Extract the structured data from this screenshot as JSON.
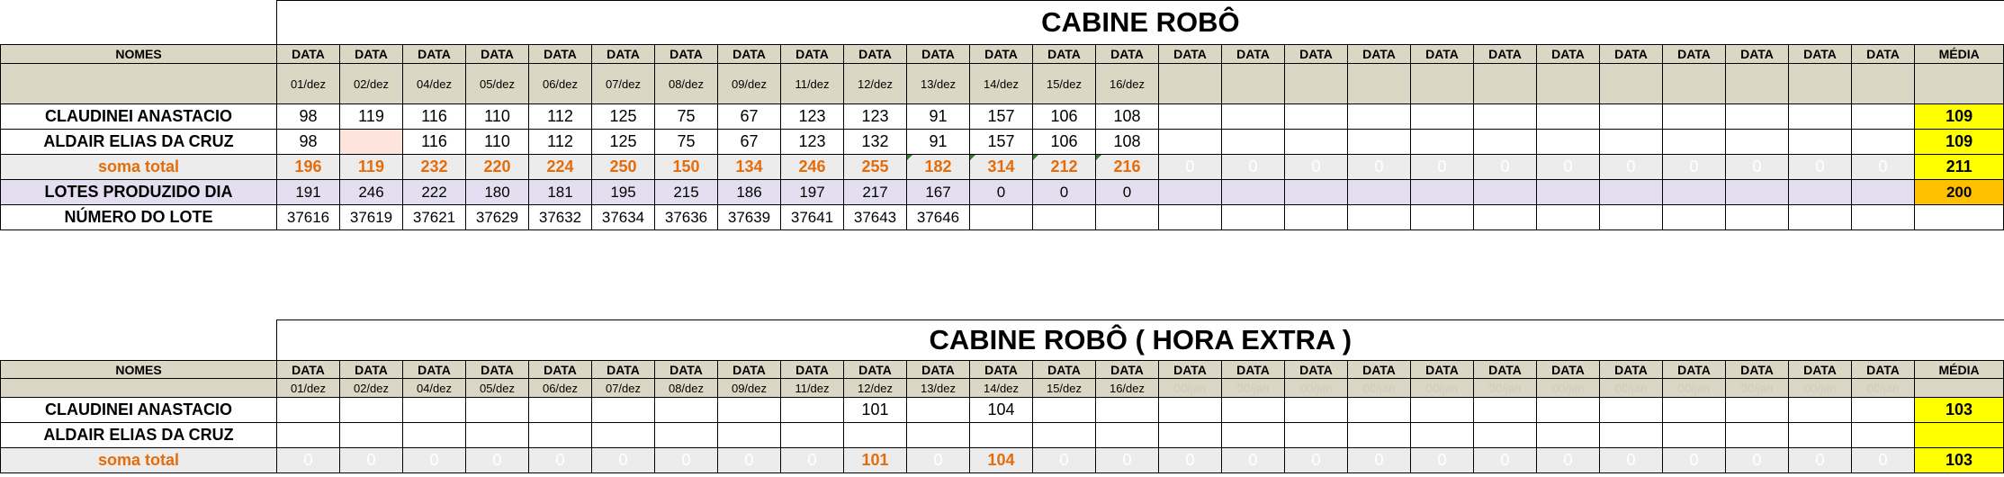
{
  "table1": {
    "title": "CABINE ROBÔ",
    "header": {
      "nomes": "NOMES",
      "data": "DATA",
      "media": "MÉDIA"
    },
    "dates": [
      "01/dez",
      "02/dez",
      "04/dez",
      "05/dez",
      "06/dez",
      "07/dez",
      "08/dez",
      "09/dez",
      "11/dez",
      "12/dez",
      "13/dez",
      "14/dez",
      "15/dez",
      "16/dez",
      "",
      "",
      "",
      "",
      "",
      "",
      "",
      "",
      "",
      "",
      "",
      ""
    ],
    "rows": [
      {
        "name": "CLAUDINEI ANASTACIO",
        "values": [
          "98",
          "119",
          "116",
          "110",
          "112",
          "125",
          "75",
          "67",
          "123",
          "123",
          "91",
          "157",
          "106",
          "108",
          "",
          "",
          "",
          "",
          "",
          "",
          "",
          "",
          "",
          "",
          "",
          ""
        ],
        "media": "109"
      },
      {
        "name": "ALDAIR ELIAS DA CRUZ",
        "values": [
          "98",
          "",
          "116",
          "110",
          "112",
          "125",
          "75",
          "67",
          "123",
          "132",
          "91",
          "157",
          "106",
          "108",
          "",
          "",
          "",
          "",
          "",
          "",
          "",
          "",
          "",
          "",
          "",
          ""
        ],
        "media": "109"
      }
    ],
    "soma": {
      "name": "soma total",
      "values": [
        "196",
        "119",
        "232",
        "220",
        "224",
        "250",
        "150",
        "134",
        "246",
        "255",
        "182",
        "314",
        "212",
        "216",
        "0",
        "0",
        "0",
        "0",
        "0",
        "0",
        "0",
        "0",
        "0",
        "0",
        "0",
        "0"
      ],
      "media": "211"
    },
    "lotes": {
      "name": "LOTES PRODUZIDO DIA",
      "values": [
        "191",
        "246",
        "222",
        "180",
        "181",
        "195",
        "215",
        "186",
        "197",
        "217",
        "167",
        "0",
        "0",
        "0",
        "",
        "",
        "",
        "",
        "",
        "",
        "",
        "",
        "",
        "",
        "",
        ""
      ],
      "media": "200"
    },
    "numero_lote": {
      "name": "NÚMERO DO LOTE",
      "values": [
        "37616",
        "37619",
        "37621",
        "37629",
        "37632",
        "37634",
        "37636",
        "37639",
        "37641",
        "37643",
        "37646",
        "",
        "",
        "",
        "",
        "",
        "",
        "",
        "",
        "",
        "",
        "",
        "",
        "",
        "",
        ""
      ],
      "media": ""
    }
  },
  "table2": {
    "title": "CABINE ROBÔ ( HORA EXTRA )",
    "header": {
      "nomes": "NOMES",
      "data": "DATA",
      "media": "MÉDIA"
    },
    "dates": [
      "01/dez",
      "02/dez",
      "04/dez",
      "05/dez",
      "06/dez",
      "07/dez",
      "08/dez",
      "09/dez",
      "11/dez",
      "12/dez",
      "13/dez",
      "14/dez",
      "15/dez",
      "16/dez",
      "00/jan",
      "00/jan",
      "00/jan",
      "00/jan",
      "00/jan",
      "00/jan",
      "00/jan",
      "00/jan",
      "00/jan",
      "00/jan",
      "00/jan",
      "00/jan"
    ],
    "rows": [
      {
        "name": "CLAUDINEI ANASTACIO",
        "values": [
          "",
          "",
          "",
          "",
          "",
          "",
          "",
          "",
          "",
          "101",
          "",
          "104",
          "",
          "",
          "",
          "",
          "",
          "",
          "",
          "",
          "",
          "",
          "",
          "",
          "",
          ""
        ],
        "media": "103"
      },
      {
        "name": "ALDAIR ELIAS DA CRUZ",
        "values": [
          "",
          "",
          "",
          "",
          "",
          "",
          "",
          "",
          "",
          "",
          "",
          "",
          "",
          "",
          "",
          "",
          "",
          "",
          "",
          "",
          "",
          "",
          "",
          "",
          "",
          ""
        ],
        "media": ""
      }
    ],
    "soma": {
      "name": "soma total",
      "values": [
        "0",
        "0",
        "0",
        "0",
        "0",
        "0",
        "0",
        "0",
        "0",
        "101",
        "0",
        "104",
        "0",
        "0",
        "0",
        "0",
        "0",
        "0",
        "0",
        "0",
        "0",
        "0",
        "0",
        "0",
        "0",
        "0"
      ],
      "media": "103"
    }
  }
}
